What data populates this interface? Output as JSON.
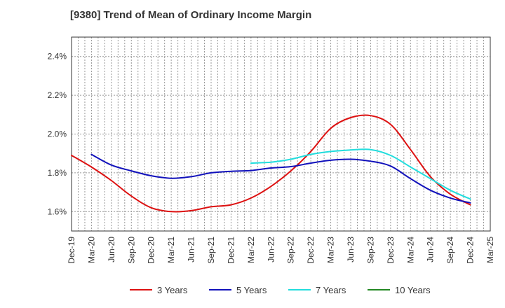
{
  "chart_data": {
    "type": "line",
    "title": "[9380]  Trend of Mean of Ordinary Income Margin",
    "xlabel": "",
    "ylabel": "",
    "x_ticks": [
      "Dec-19",
      "Mar-20",
      "Jun-20",
      "Sep-20",
      "Dec-20",
      "Mar-21",
      "Jun-21",
      "Sep-21",
      "Dec-21",
      "Mar-22",
      "Jun-22",
      "Sep-22",
      "Dec-22",
      "Mar-23",
      "Jun-23",
      "Sep-23",
      "Dec-23",
      "Mar-24",
      "Jun-24",
      "Sep-24",
      "Dec-24",
      "Mar-25"
    ],
    "y_ticks": [
      "1.6%",
      "1.8%",
      "2.0%",
      "2.2%",
      "2.4%"
    ],
    "y_tick_values": [
      1.6,
      1.8,
      2.0,
      2.2,
      2.4
    ],
    "ylim": [
      1.5,
      2.5
    ],
    "grid": true,
    "legend_position": "bottom",
    "series": [
      {
        "name": "3 Years",
        "color": "#dd1111",
        "values": [
          1.89,
          1.83,
          1.76,
          1.68,
          1.62,
          1.6,
          1.605,
          1.625,
          1.635,
          1.67,
          1.73,
          1.81,
          1.91,
          2.03,
          2.085,
          2.095,
          2.05,
          1.92,
          1.78,
          1.69,
          1.635,
          null
        ]
      },
      {
        "name": "5 Years",
        "color": "#1111bb",
        "values": [
          null,
          1.895,
          1.84,
          1.81,
          1.785,
          1.772,
          1.78,
          1.8,
          1.808,
          1.812,
          1.825,
          1.832,
          1.85,
          1.865,
          1.87,
          1.86,
          1.835,
          1.77,
          1.71,
          1.67,
          1.645,
          null
        ]
      },
      {
        "name": "7 Years",
        "color": "#22dddd",
        "values": [
          null,
          null,
          null,
          null,
          null,
          null,
          null,
          null,
          null,
          1.85,
          1.855,
          1.87,
          1.895,
          1.91,
          1.918,
          1.92,
          1.89,
          1.83,
          1.77,
          1.71,
          1.665,
          null
        ]
      },
      {
        "name": "10 Years",
        "color": "#228822",
        "values": []
      }
    ]
  }
}
